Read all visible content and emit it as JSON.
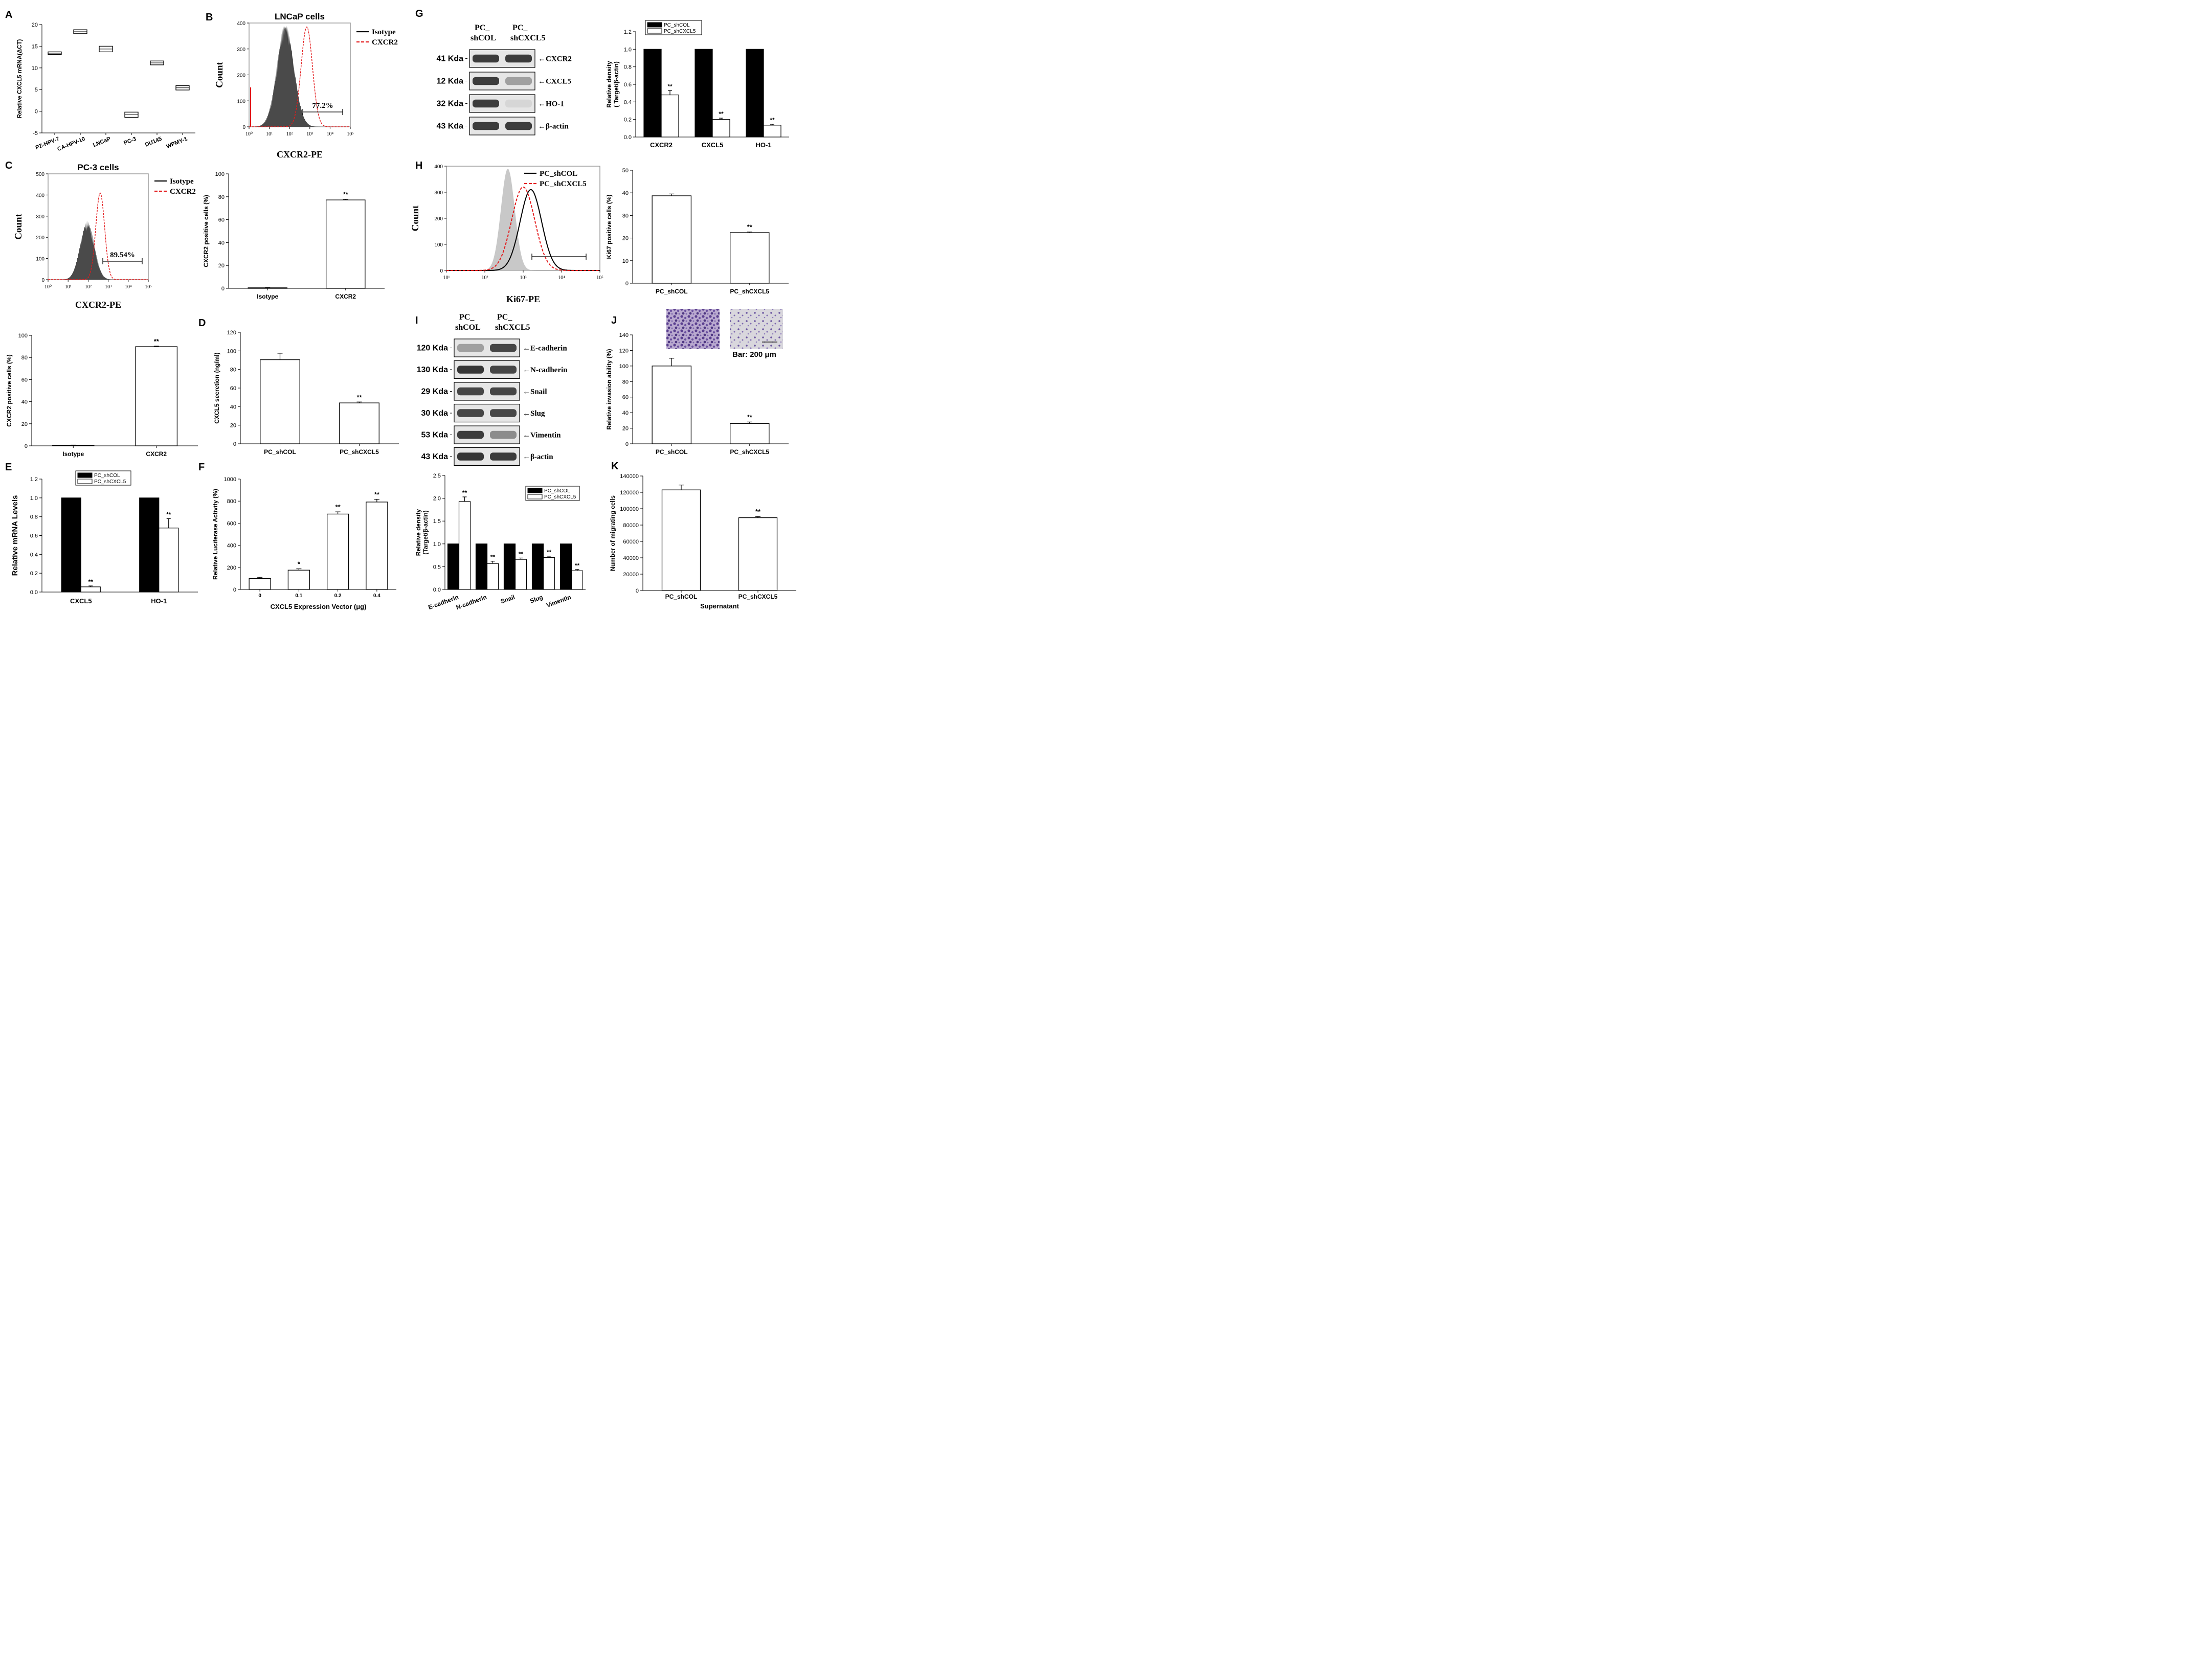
{
  "panels": {
    "A": {
      "letter": "A",
      "chart_data": {
        "type": "box",
        "title": "",
        "ylabel": "Relative CXCL5 mRNA(ΔCT)",
        "ylim": [
          -5,
          20
        ],
        "yticks": [
          "-5",
          "0",
          "5",
          "10",
          "15",
          "20"
        ],
        "categories": [
          "PZ-HPV-7",
          "CA-HPV-10",
          "LNCaP",
          "PC-3",
          "DU145",
          "WPMY-1"
        ],
        "series": [
          {
            "name": "box",
            "low": [
              13.1,
              17.9,
              13.7,
              -1.4,
              10.7,
              4.9
            ],
            "high": [
              13.7,
              18.8,
              15.0,
              -0.2,
              11.6,
              5.9
            ]
          }
        ]
      }
    },
    "B": {
      "letter": "B",
      "chart_data": {
        "type": "histogram",
        "title": "LNCaP cells",
        "xlabel": "CXCR2-PE",
        "ylabel": "Count",
        "ylim": [
          0,
          400
        ],
        "yticks": [
          "0",
          "100",
          "200",
          "300",
          "400"
        ],
        "xticks": [
          "10⁰",
          "10¹",
          "10²",
          "10³",
          "10⁴",
          "10⁵"
        ],
        "legend": [
          "Isotype",
          "CXCR2"
        ],
        "gate_label": "77.2%",
        "series": [
          {
            "name": "Isotype",
            "peak_log10": 1.8,
            "peak_count": 400,
            "width": 0.42
          },
          {
            "name": "CXCR2",
            "peak_log10": 2.85,
            "peak_count": 385,
            "width": 0.28
          }
        ]
      }
    },
    "C": {
      "letter": "C",
      "chart_data": {
        "type": "histogram",
        "title": "PC-3 cells",
        "xlabel": "CXCR2-PE",
        "ylabel": "Count",
        "ylim": [
          0,
          500
        ],
        "yticks": [
          "0",
          "100",
          "200",
          "300",
          "400",
          "500"
        ],
        "xticks": [
          "10⁰",
          "10¹",
          "10²",
          "10³",
          "10⁴",
          "10⁵"
        ],
        "legend": [
          "Isotype",
          "CXCR2"
        ],
        "gate_label": "89.54%",
        "series": [
          {
            "name": "Isotype",
            "peak_log10": 1.95,
            "peak_count": 280,
            "width": 0.35
          },
          {
            "name": "CXCR2",
            "peak_log10": 2.6,
            "peak_count": 410,
            "width": 0.22
          }
        ]
      }
    },
    "Bbar": {
      "chart_data": {
        "type": "bar",
        "ylabel": "CXCR2 positive cells (%)",
        "ylim": [
          0,
          100
        ],
        "yticks": [
          "0",
          "20",
          "40",
          "60",
          "80",
          "100"
        ],
        "categories": [
          "Isotype",
          "CXCR2"
        ],
        "values": [
          0.5,
          77.2
        ],
        "errors": [
          0.2,
          0.6
        ],
        "annotations": [
          "",
          "**"
        ]
      }
    },
    "Cbar": {
      "chart_data": {
        "type": "bar",
        "ylabel": "CXCR2 positive cells (%)",
        "ylim": [
          0,
          100
        ],
        "yticks": [
          "0",
          "20",
          "40",
          "60",
          "80",
          "100"
        ],
        "categories": [
          "Isotype",
          "CXCR2"
        ],
        "values": [
          0.5,
          89.8
        ],
        "errors": [
          0.2,
          0.5
        ],
        "annotations": [
          "",
          "**"
        ]
      }
    },
    "D": {
      "letter": "D",
      "chart_data": {
        "type": "bar",
        "ylabel": "CXCL5 secretion (ng/ml)",
        "ylim": [
          0,
          120
        ],
        "yticks": [
          "0",
          "20",
          "40",
          "60",
          "80",
          "100",
          "120"
        ],
        "categories": [
          "PC_shCOL",
          "PC_shCXCL5"
        ],
        "values": [
          90.5,
          44
        ],
        "errors": [
          7,
          1
        ],
        "annotations": [
          "",
          "**"
        ]
      }
    },
    "E": {
      "letter": "E",
      "chart_data": {
        "type": "bar",
        "ylabel": "Relative mRNA Levels",
        "ylim": [
          0,
          1.2
        ],
        "yticks": [
          "0.0",
          "0.2",
          "0.4",
          "0.6",
          "0.8",
          "1.0",
          "1.2"
        ],
        "categories": [
          "CXCL5",
          "HO-1"
        ],
        "legend": [
          "PC_shCOL",
          "PC_shCXCL5"
        ],
        "series": [
          {
            "name": "PC_shCOL",
            "values": [
              1.0,
              1.0
            ],
            "errors": [
              0,
              0
            ],
            "annotations": [
              "",
              ""
            ]
          },
          {
            "name": "PC_shCXCL5",
            "values": [
              0.055,
              0.68
            ],
            "errors": [
              0.01,
              0.1
            ],
            "annotations": [
              "**",
              "**"
            ]
          }
        ]
      }
    },
    "F": {
      "letter": "F",
      "chart_data": {
        "type": "bar",
        "ylabel": "Relative Luciferase Activity (%)",
        "xlabel": "CXCL5 Expression Vector (μg)",
        "ylim": [
          0,
          1000
        ],
        "yticks": [
          "0",
          "200",
          "400",
          "600",
          "800",
          "1000"
        ],
        "categories": [
          "0",
          "0.1",
          "0.2",
          "0.4"
        ],
        "values": [
          100,
          175,
          683,
          792
        ],
        "errors": [
          10,
          12,
          20,
          25
        ],
        "annotations": [
          "",
          "*",
          "**",
          "**"
        ]
      }
    },
    "G": {
      "letter": "G",
      "blot": {
        "columns": [
          "PC_",
          "shCOL",
          "PC_",
          "shCXCL5"
        ],
        "rows": [
          {
            "kda": "41 Kda",
            "target": "←CXCR2",
            "a": 0.85,
            "b": 0.85
          },
          {
            "kda": "12 Kda",
            "target": "←CXCL5",
            "a": 0.85,
            "b": 0.35
          },
          {
            "kda": "32 Kda",
            "target": "←HO-1",
            "a": 0.85,
            "b": 0.08
          },
          {
            "kda": "43 Kda",
            "target": "←β-actin",
            "a": 0.85,
            "b": 0.85
          }
        ]
      },
      "chart_data": {
        "type": "bar",
        "ylabel": "Relative density",
        "ylabel2": "( Target/β-actin)",
        "ylim": [
          0,
          1.2
        ],
        "yticks": [
          "0.0",
          "0.2",
          "0.4",
          "0.6",
          "0.8",
          "1.0",
          "1.2"
        ],
        "categories": [
          "CXCR2",
          "CXCL5",
          "HO-1"
        ],
        "legend": [
          "PC_shCOL",
          "PC_shCXCL5"
        ],
        "series": [
          {
            "name": "PC_shCOL",
            "values": [
              1.0,
              1.0,
              1.0
            ],
            "errors": [
              0,
              0,
              0
            ],
            "annotations": [
              "",
              "",
              ""
            ]
          },
          {
            "name": "PC_shCXCL5",
            "values": [
              0.48,
              0.2,
              0.135
            ],
            "errors": [
              0.05,
              0.015,
              0.01
            ],
            "annotations": [
              "**",
              "**",
              "**"
            ]
          }
        ]
      }
    },
    "H": {
      "letter": "H",
      "chart_data": {
        "type": "histogram",
        "xlabel": "Ki67-PE",
        "ylabel": "Count",
        "ylim": [
          0,
          400
        ],
        "yticks": [
          "0",
          "100",
          "200",
          "300",
          "400"
        ],
        "xticks": [
          "10¹",
          "10²",
          "10³",
          "10⁴",
          "10⁵"
        ],
        "legend": [
          "PC_shCOL",
          "PC_shCXCL5"
        ],
        "series": [
          {
            "name": "control",
            "peak_log10": 2.6,
            "peak_count": 390,
            "width": 0.18
          },
          {
            "name": "PC_shCOL",
            "peak_log10": 3.2,
            "peak_count": 310,
            "width": 0.28
          },
          {
            "name": "PC_shCXCL5",
            "peak_log10": 3.0,
            "peak_count": 320,
            "width": 0.3
          }
        ]
      }
    },
    "Hbar": {
      "chart_data": {
        "type": "bar",
        "ylabel": "Ki67 positive cells (%)",
        "ylim": [
          0,
          50
        ],
        "yticks": [
          "0",
          "10",
          "20",
          "30",
          "40",
          "50"
        ],
        "categories": [
          "PC_shCOL",
          "PC_shCXCL5"
        ],
        "values": [
          38.7,
          22.4
        ],
        "errors": [
          0.8,
          0.3
        ],
        "annotations": [
          "",
          "**"
        ]
      }
    },
    "I": {
      "letter": "I",
      "blot": {
        "columns": [
          "PC_",
          "shCOL",
          "PC_",
          "shCXCL5"
        ],
        "rows": [
          {
            "kda": "120 Kda",
            "target": "←E-cadherin",
            "a": 0.35,
            "b": 0.8
          },
          {
            "kda": "130 Kda",
            "target": "←N-cadherin",
            "a": 0.88,
            "b": 0.8
          },
          {
            "kda": "29 Kda",
            "target": "←Snail",
            "a": 0.8,
            "b": 0.8
          },
          {
            "kda": "30 Kda",
            "target": "←Slug",
            "a": 0.8,
            "b": 0.8
          },
          {
            "kda": "53 Kda",
            "target": "←Vimentin",
            "a": 0.85,
            "b": 0.45
          },
          {
            "kda": "43 Kda",
            "target": "←β-actin",
            "a": 0.88,
            "b": 0.85
          }
        ]
      },
      "chart_data": {
        "type": "bar",
        "ylabel": "Relative density",
        "ylabel2": "(Target/β-actin)",
        "ylim": [
          0,
          2.5
        ],
        "yticks": [
          "0.0",
          "0.5",
          "1.0",
          "1.5",
          "2.0",
          "2.5"
        ],
        "categories": [
          "E-cadherin",
          "N-cadherin",
          "Snail",
          "Slug",
          "Vimentin"
        ],
        "legend": [
          "PC_shCOL",
          "PC_shCXCL5"
        ],
        "series": [
          {
            "name": "PC_shCOL",
            "values": [
              1,
              1,
              1,
              1,
              1
            ],
            "errors": [
              0,
              0,
              0,
              0,
              0
            ],
            "annotations": [
              "",
              "",
              "",
              "",
              ""
            ]
          },
          {
            "name": "PC_shCXCL5",
            "values": [
              1.93,
              0.57,
              0.66,
              0.7,
              0.41
            ],
            "errors": [
              0.1,
              0.05,
              0.03,
              0.03,
              0.03
            ],
            "annotations": [
              "**",
              "**",
              "**",
              "**",
              "**"
            ]
          }
        ]
      }
    },
    "J": {
      "letter": "J",
      "scale_label": "Bar: 200 μm",
      "chart_data": {
        "type": "bar",
        "ylabel": "Relative invasion ability (%)",
        "ylim": [
          0,
          140
        ],
        "yticks": [
          "0",
          "20",
          "40",
          "60",
          "80",
          "100",
          "120",
          "140"
        ],
        "categories": [
          "PC_shCOL",
          "PC_shCXCL5"
        ],
        "values": [
          100,
          26
        ],
        "errors": [
          10,
          2
        ],
        "annotations": [
          "",
          "**"
        ]
      }
    },
    "K": {
      "letter": "K",
      "chart_data": {
        "type": "bar",
        "ylabel": "Number of migrating cells",
        "xlabel": "Supernatant",
        "ylim": [
          0,
          140000
        ],
        "yticks": [
          "0",
          "20000",
          "40000",
          "60000",
          "80000",
          "100000",
          "120000",
          "140000"
        ],
        "categories": [
          "PC_shCOL",
          "PC_shCXCL5"
        ],
        "values": [
          123000,
          89000
        ],
        "errors": [
          6000,
          1500
        ],
        "annotations": [
          "",
          "**"
        ]
      }
    }
  },
  "colors": {
    "black": "#000000",
    "red": "#e31a1c",
    "dark_fill": "#4a4a4a",
    "light_fill": "#c8c8c8",
    "frame": "#9a9a9a"
  }
}
